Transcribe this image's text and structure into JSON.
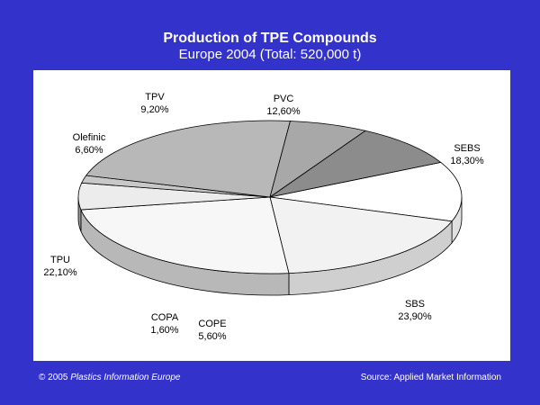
{
  "chart_data": {
    "type": "pie",
    "title": "Production of TPE Compounds",
    "subtitle": "Europe 2004 (Total: 520,000 t)",
    "slices": [
      {
        "name": "PVC",
        "label": "12,60%",
        "value": 12.6
      },
      {
        "name": "SEBS",
        "label": "18,30%",
        "value": 18.3
      },
      {
        "name": "SBS",
        "label": "23,90%",
        "value": 23.9
      },
      {
        "name": "COPE",
        "label": "5,60%",
        "value": 5.6
      },
      {
        "name": "COPA",
        "label": "1,60%",
        "value": 1.6
      },
      {
        "name": "TPU",
        "label": "22,10%",
        "value": 22.1
      },
      {
        "name": "Olefinic",
        "label": "6,60%",
        "value": 6.6
      },
      {
        "name": "TPV",
        "label": "9,20%",
        "value": 9.2
      }
    ]
  },
  "footer": {
    "copyright": "© 2005",
    "publisher": "Plastics Information Europe",
    "source": "Source: Applied Market Information"
  }
}
